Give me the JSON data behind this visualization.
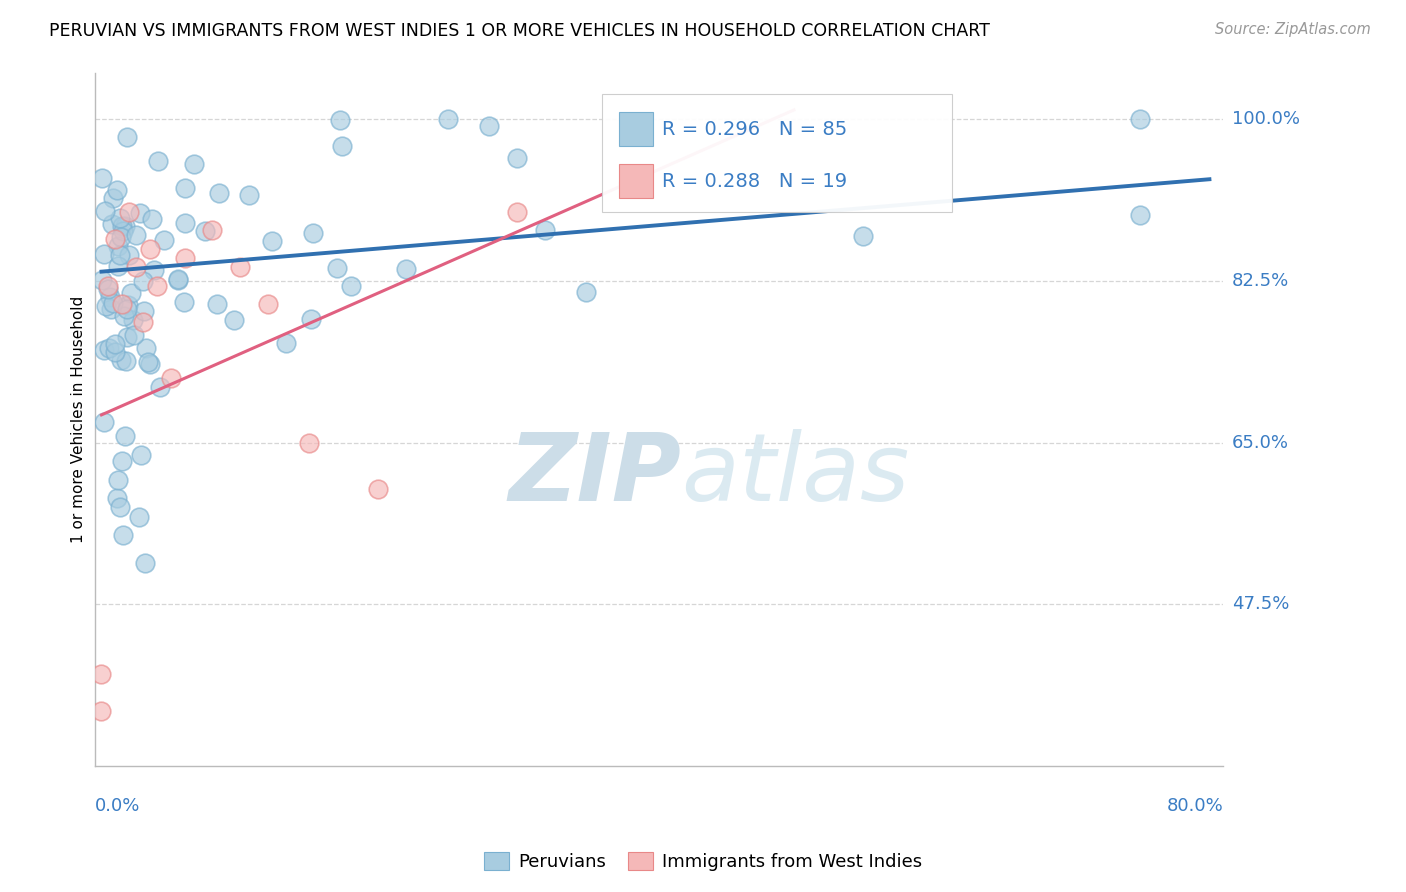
{
  "title": "PERUVIAN VS IMMIGRANTS FROM WEST INDIES 1 OR MORE VEHICLES IN HOUSEHOLD CORRELATION CHART",
  "source": "Source: ZipAtlas.com",
  "ylabel": "1 or more Vehicles in Household",
  "yticks_labels": [
    "100.0%",
    "82.5%",
    "65.0%",
    "47.5%"
  ],
  "ytick_vals": [
    1.0,
    0.825,
    0.65,
    0.475
  ],
  "xlim": [
    -0.005,
    0.81
  ],
  "ylim": [
    0.3,
    1.05
  ],
  "blue_color": "#a8cce0",
  "blue_edge": "#7ab0d0",
  "pink_color": "#f5b8b8",
  "pink_edge": "#e88888",
  "line_blue_color": "#3070b0",
  "line_pink_color": "#e06080",
  "grid_color": "#cccccc",
  "watermark_color": "#ccdde8",
  "blue_line_x0": 0.0,
  "blue_line_y0": 0.835,
  "blue_line_x1": 0.8,
  "blue_line_y1": 0.935,
  "pink_line_x0": 0.0,
  "pink_line_y0": 0.68,
  "pink_line_x1": 0.5,
  "pink_line_y1": 1.01
}
